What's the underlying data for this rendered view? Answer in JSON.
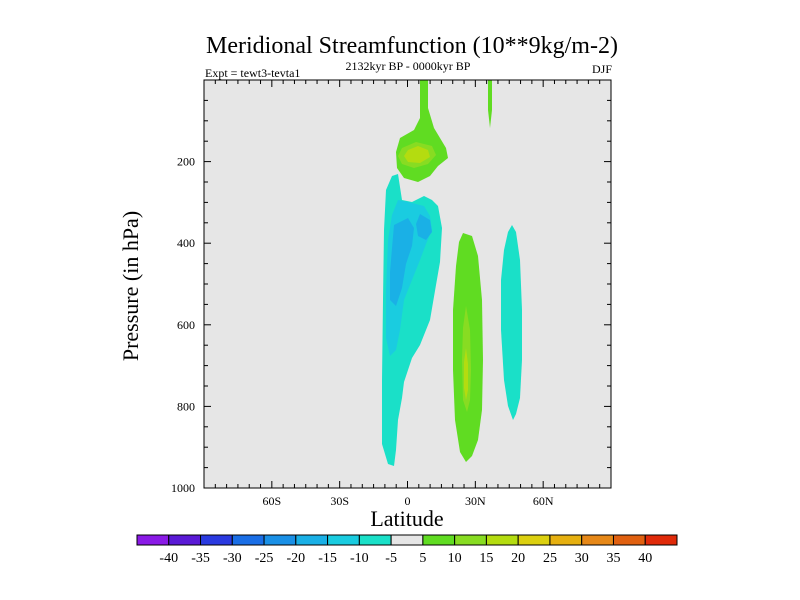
{
  "chart_data": {
    "type": "contour",
    "title": "Meridional Streamfunction (10**9kg/m-2)",
    "subtitle_left": "Expt = tewt3-tevta1",
    "subtitle_center": "2132kyr BP - 0000kyr BP",
    "subtitle_right": "DJF",
    "xlabel": "Latitude",
    "ylabel": "Pressure (in hPa)",
    "xlim": [
      -90,
      90
    ],
    "ylim": [
      1000,
      0
    ],
    "x_ticks": [
      {
        "value": -60,
        "label": "60S"
      },
      {
        "value": -30,
        "label": "30S"
      },
      {
        "value": 0,
        "label": "0"
      },
      {
        "value": 30,
        "label": "30N"
      },
      {
        "value": 60,
        "label": "60N"
      }
    ],
    "y_ticks": [
      {
        "value": 200,
        "label": "200"
      },
      {
        "value": 400,
        "label": "400"
      },
      {
        "value": 600,
        "label": "600"
      },
      {
        "value": 800,
        "label": "800"
      },
      {
        "value": 1000,
        "label": "1000"
      }
    ],
    "contour_levels": [
      -40,
      -35,
      -30,
      -25,
      -20,
      -15,
      -10,
      -5,
      5,
      10,
      15,
      20,
      25,
      30,
      35,
      40
    ],
    "colorbar_colors": [
      "#8a1ae6",
      "#5a1ad6",
      "#2a3ae0",
      "#1a6ee6",
      "#1a90e6",
      "#1ab0e6",
      "#1acce0",
      "#1ae0c8",
      "#e6e6e6",
      "#60dc22",
      "#88dc22",
      "#b4dc10",
      "#dcd010",
      "#e6b010",
      "#e68818",
      "#e06010",
      "#e02a0a"
    ],
    "background_color": "#e6e6e6",
    "features": [
      {
        "name": "neg-cell-main",
        "level": -10,
        "lat": [
          -10,
          13
        ],
        "plev": [
          240,
          945
        ],
        "core_min": -20,
        "core_lat": 0,
        "core_plev": 420
      },
      {
        "name": "pos-cell-upper",
        "level": 5,
        "lat": [
          -4,
          13
        ],
        "plev": [
          0,
          210
        ],
        "core_max": 15,
        "core_lat": 4,
        "core_plev": 175
      },
      {
        "name": "pos-cell-mid",
        "level": 5,
        "lat": [
          23,
          33
        ],
        "plev": [
          345,
          930
        ],
        "core_max": 15,
        "core_lat": 27,
        "core_plev": 680
      },
      {
        "name": "neg-cell-north",
        "level": -5,
        "lat": [
          41,
          50
        ],
        "plev": [
          350,
          815
        ]
      },
      {
        "name": "pos-sliver-upper",
        "level": 5,
        "lat": [
          36,
          38
        ],
        "plev": [
          0,
          100
        ]
      }
    ]
  }
}
